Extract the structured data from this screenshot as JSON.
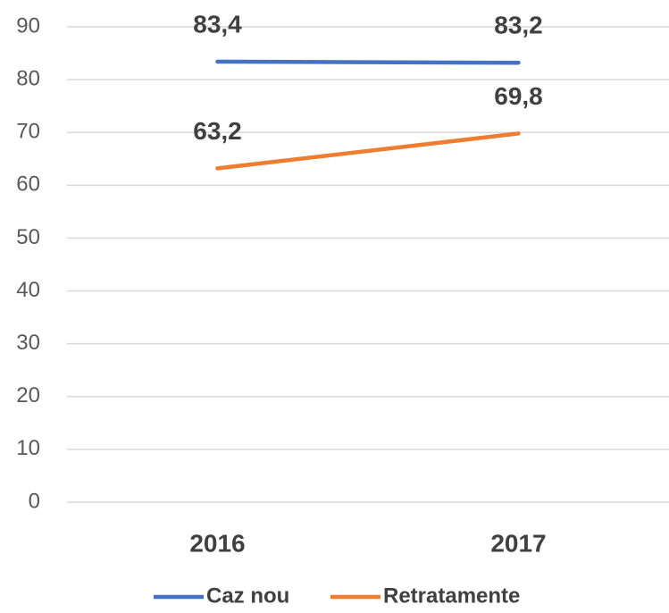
{
  "chart_data": {
    "type": "line",
    "categories": [
      "2016",
      "2017"
    ],
    "series": [
      {
        "name": "Caz nou",
        "color": "#4472c4",
        "values": [
          83.4,
          83.2
        ],
        "value_labels": [
          "83,4",
          "83,2"
        ]
      },
      {
        "name": "Retratamente",
        "color": "#ed7d31",
        "values": [
          63.2,
          69.8
        ],
        "value_labels": [
          "63,2",
          "69,8"
        ]
      }
    ],
    "ylim": [
      0,
      90
    ],
    "yticks": [
      0,
      10,
      20,
      30,
      40,
      50,
      60,
      70,
      80,
      90
    ],
    "grid": true,
    "legend": "bottom"
  }
}
